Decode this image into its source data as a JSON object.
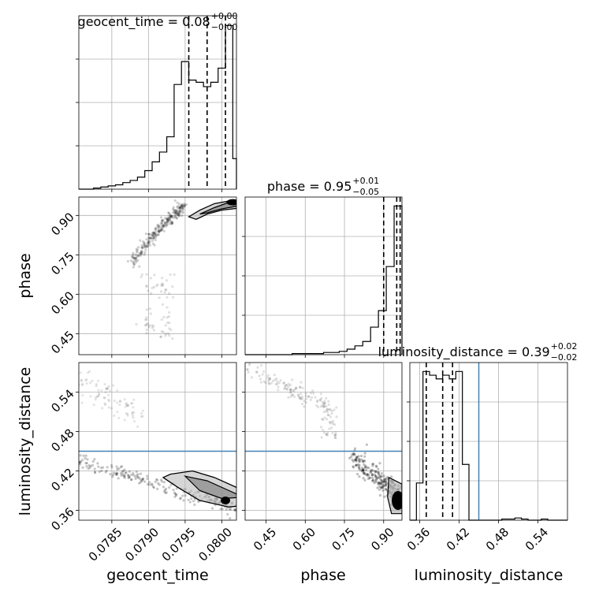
{
  "chart_data": {
    "type": "corner",
    "parameters": [
      "geocent_time",
      "phase",
      "luminosity_distance"
    ],
    "truth": {
      "luminosity_distance": 0.45
    },
    "titles": {
      "geocent_time": {
        "prefix": "geocent_time = 0.08",
        "plus": "+0.00",
        "minus": "−0.00"
      },
      "phase": {
        "prefix": "phase = 0.95",
        "plus": "+0.01",
        "minus": "−0.05"
      },
      "luminosity_distance": {
        "prefix": "luminosity_distance = 0.39",
        "plus": "+0.02",
        "minus": "−0.02"
      }
    },
    "axes": {
      "geocent_time": {
        "range": [
          0.07805,
          0.0802
        ],
        "ticks": [
          0.0785,
          0.079,
          0.0795,
          0.08
        ],
        "tick_labels": [
          "0.0785",
          "0.0790",
          "0.0795",
          "0.0800"
        ]
      },
      "phase": {
        "range": [
          0.37,
          0.97
        ],
        "ticks": [
          0.45,
          0.6,
          0.75,
          0.9
        ],
        "tick_labels": [
          "0.45",
          "0.60",
          "0.75",
          "0.90"
        ]
      },
      "luminosity_distance": {
        "range": [
          0.345,
          0.585
        ],
        "ticks": [
          0.36,
          0.42,
          0.48,
          0.54
        ],
        "tick_labels": [
          "0.36",
          "0.42",
          "0.48",
          "0.54"
        ]
      }
    },
    "histograms": {
      "geocent_time": {
        "bins": [
          0.07805,
          0.07815,
          0.07825,
          0.07835,
          0.07845,
          0.07855,
          0.07865,
          0.07875,
          0.07885,
          0.07895,
          0.07905,
          0.07915,
          0.07925,
          0.07935,
          0.07945,
          0.07955,
          0.07965,
          0.07975,
          0.07985,
          0.07995,
          0.08005,
          0.08015,
          0.0802
        ],
        "counts": [
          0,
          0,
          1,
          2,
          3,
          4,
          6,
          8,
          11,
          17,
          25,
          34,
          48,
          96,
          117,
          100,
          98,
          94,
          98,
          111,
          150,
          28
        ]
      },
      "phase": {
        "bins": [
          0.37,
          0.43,
          0.49,
          0.55,
          0.61,
          0.67,
          0.73,
          0.76,
          0.79,
          0.82,
          0.85,
          0.88,
          0.91,
          0.94,
          0.97
        ],
        "counts": [
          0,
          0,
          0,
          1,
          1,
          2,
          3,
          5,
          8,
          12,
          25,
          40,
          80,
          135
        ]
      },
      "luminosity_distance": {
        "bins": [
          0.345,
          0.355,
          0.365,
          0.375,
          0.385,
          0.395,
          0.405,
          0.415,
          0.425,
          0.435,
          0.445,
          0.455,
          0.465,
          0.475,
          0.485,
          0.495,
          0.505,
          0.515,
          0.525,
          0.535,
          0.545,
          0.555,
          0.565,
          0.575,
          0.585
        ],
        "counts": [
          0,
          10,
          40,
          39,
          38,
          39,
          38,
          40,
          15,
          0,
          0,
          0,
          0,
          0,
          0.3,
          0.3,
          0.6,
          0.3,
          0,
          0,
          0.3,
          0,
          0,
          0
        ]
      }
    },
    "quantiles": {
      "geocent_time": [
        0.07955,
        0.0798,
        0.08005
      ],
      "phase": [
        0.9,
        0.95,
        0.963
      ],
      "luminosity_distance": [
        0.37,
        0.395,
        0.41
      ]
    },
    "grid": true
  }
}
